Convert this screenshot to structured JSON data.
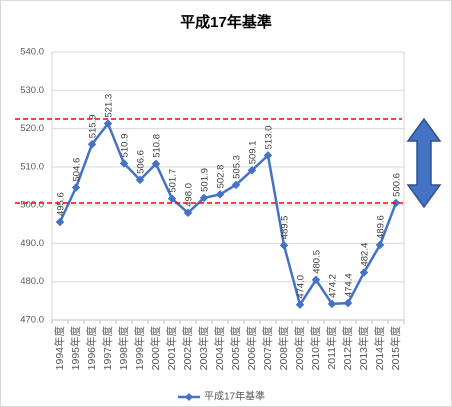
{
  "colors": {
    "series": "#4472C4",
    "reference_lines": "#FF0000",
    "arrow_fill": "#4472C4",
    "arrow_outline": "#2F528F"
  },
  "chart_data": {
    "type": "line",
    "title": "平成17年基準",
    "categories": [
      "1994年度",
      "1995年度",
      "1996年度",
      "1997年度",
      "1998年度",
      "1999年度",
      "2000年度",
      "2001年度",
      "2002年度",
      "2003年度",
      "2004年度",
      "2005年度",
      "2006年度",
      "2007年度",
      "2008年度",
      "2009年度",
      "2010年度",
      "2011年度",
      "2012年度",
      "2013年度",
      "2014年度",
      "2015年度"
    ],
    "series": [
      {
        "name": "平成17年基準",
        "marker": "diamond",
        "data_labels": true,
        "values": [
          495.6,
          504.6,
          515.9,
          521.3,
          510.9,
          506.6,
          510.8,
          501.7,
          498.0,
          501.9,
          502.8,
          505.3,
          509.1,
          513.0,
          489.5,
          474.0,
          480.5,
          474.2,
          474.4,
          482.4,
          489.6,
          500.6
        ]
      }
    ],
    "ylim": [
      470,
      540
    ],
    "y_tick_step": 10,
    "grid": true,
    "legend_position": "bottom"
  }
}
